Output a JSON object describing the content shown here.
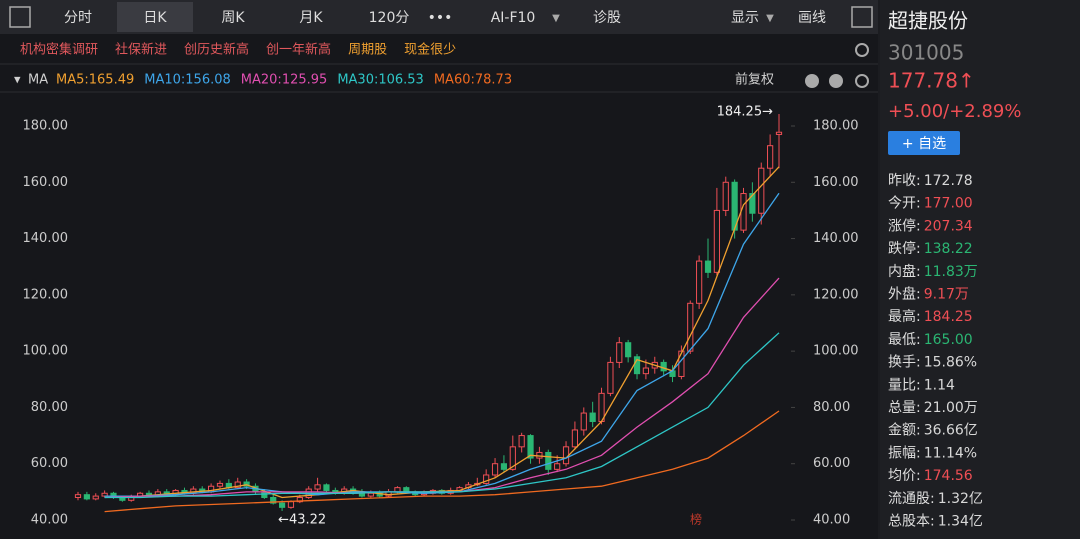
{
  "toolbar": {
    "tabs": [
      "分时",
      "日K",
      "周K",
      "月K",
      "120分",
      "AI-F10",
      "诊股",
      "显示",
      "画线"
    ],
    "active": 1
  },
  "tags": [
    {
      "text": "机构密集调研",
      "color": "#e0585c"
    },
    {
      "text": "社保新进",
      "color": "#e0585c"
    },
    {
      "text": "创历史新高",
      "color": "#e0585c"
    },
    {
      "text": "创一年新高",
      "color": "#e0585c"
    },
    {
      "text": "周期股",
      "color": "#f0a030"
    },
    {
      "text": "现金很少",
      "color": "#f0a030"
    }
  ],
  "indicator": "MA",
  "adjust": "前复权",
  "watermark": "榜",
  "chart_data": {
    "type": "candlestick",
    "open": [
      48,
      49,
      47.5,
      48.5,
      49.5,
      48,
      47,
      48.5,
      49.5,
      48.5,
      50,
      49,
      50.5,
      49.5,
      51,
      50,
      52,
      53,
      51.5,
      53.5,
      52,
      50,
      48,
      46,
      44.5,
      46.5,
      48,
      51,
      52.5,
      50.5,
      49.5,
      51,
      50,
      48.5,
      49.5,
      48.5,
      50,
      51.5,
      50,
      49,
      49.5,
      50.5,
      49.5,
      50.5,
      51.5,
      52.5,
      53,
      56,
      60,
      58,
      66,
      70,
      62,
      64,
      58,
      60,
      66,
      72,
      78,
      75,
      85,
      96,
      103,
      98,
      92,
      94,
      96,
      93,
      91,
      100,
      117,
      132,
      128,
      150,
      160,
      143,
      156,
      149,
      165,
      177
    ],
    "close": [
      49,
      47.5,
      48.5,
      49.5,
      48,
      47,
      48.5,
      49.5,
      48.5,
      50,
      49,
      50.5,
      49.5,
      51,
      50,
      52,
      53,
      51.5,
      53.5,
      52,
      50,
      48,
      46,
      44.5,
      46.5,
      48,
      51,
      52.5,
      50.5,
      49.5,
      51,
      50,
      48.5,
      49.5,
      48.5,
      50,
      51.5,
      50,
      49,
      49.5,
      50.5,
      49.5,
      50.5,
      51.5,
      52.5,
      53,
      56,
      60,
      58,
      66,
      70,
      62,
      64,
      58,
      60,
      66,
      72,
      78,
      75,
      85,
      96,
      103,
      98,
      92,
      94,
      96,
      93,
      91,
      100,
      117,
      132,
      128,
      150,
      160,
      143,
      156,
      149,
      165,
      173,
      177.78
    ],
    "low": [
      47,
      47,
      47,
      48,
      47.5,
      46.5,
      46.5,
      48,
      48,
      48,
      48.5,
      48.5,
      49,
      49,
      49.5,
      49.5,
      51,
      51,
      51,
      51,
      49,
      47.5,
      45.5,
      43.22,
      44,
      46,
      47.5,
      50,
      50,
      49,
      49,
      49,
      48,
      48,
      48,
      48,
      49.5,
      49.5,
      48.5,
      48.5,
      49,
      49,
      49,
      50,
      51,
      52,
      52.5,
      55,
      57,
      57.5,
      64,
      60,
      60,
      56,
      57,
      59,
      65,
      70,
      73,
      74,
      84,
      94,
      96,
      90,
      90,
      92,
      91,
      89,
      90,
      99,
      115,
      126,
      127,
      148,
      140,
      142,
      146,
      145,
      162,
      165
    ],
    "high": [
      50,
      50,
      49.5,
      50.5,
      50,
      48.5,
      49,
      50,
      50.5,
      51,
      51,
      51,
      51.5,
      52,
      52,
      53,
      54,
      54.5,
      55,
      54.5,
      53,
      51,
      49,
      47,
      47,
      49,
      52,
      55,
      53,
      51.5,
      52,
      52,
      51,
      50.5,
      50.5,
      51,
      52,
      52,
      50.5,
      50.5,
      51,
      51,
      51.5,
      52,
      53.5,
      55,
      58,
      62,
      63,
      70,
      71,
      70.5,
      66,
      65,
      63,
      68,
      75,
      80,
      82,
      87,
      98,
      105,
      104,
      99,
      97,
      98,
      97,
      95,
      102,
      118,
      134,
      140,
      158,
      162,
      161,
      158,
      160,
      167,
      177,
      184.25
    ],
    "up_color": "#ef4f55",
    "down_color": "#2bb673",
    "series": [
      {
        "name": "MA5:165.49",
        "color": "#f0a030",
        "x": [
          3,
          7,
          11,
          15,
          19,
          23,
          27,
          31,
          35,
          39,
          43,
          47,
          51,
          55,
          59,
          63,
          67,
          71,
          75,
          79
        ],
        "values": [
          48.5,
          48.5,
          49.5,
          50.5,
          52.5,
          48,
          49,
          50.5,
          49,
          50,
          50.5,
          55,
          63,
          62,
          75,
          97,
          93,
          118,
          152,
          165.49
        ]
      },
      {
        "name": "MA10:156.08",
        "color": "#3ea6ea",
        "x": [
          3,
          7,
          11,
          15,
          19,
          23,
          27,
          31,
          35,
          39,
          43,
          47,
          51,
          55,
          59,
          63,
          67,
          71,
          75,
          79
        ],
        "values": [
          48.5,
          48.5,
          49,
          50,
          51.5,
          50,
          49,
          50,
          50,
          49.5,
          50,
          53,
          58,
          62,
          68,
          86,
          93,
          108,
          138,
          156.08
        ]
      },
      {
        "name": "MA20:125.95",
        "color": "#e04fb0",
        "x": [
          3,
          7,
          11,
          15,
          19,
          23,
          27,
          31,
          35,
          39,
          43,
          47,
          51,
          55,
          59,
          63,
          67,
          71,
          75,
          79
        ],
        "values": [
          48,
          48.5,
          48.5,
          49,
          50,
          50,
          50,
          49.5,
          50,
          50,
          50,
          51.5,
          55,
          58,
          63,
          73,
          82,
          92,
          112,
          125.95
        ]
      },
      {
        "name": "MA30:106.53",
        "color": "#2ec6c6",
        "x": [
          3,
          7,
          11,
          15,
          19,
          23,
          27,
          31,
          35,
          39,
          43,
          47,
          51,
          55,
          59,
          63,
          67,
          71,
          75,
          79
        ],
        "values": [
          48,
          48,
          48.5,
          48.5,
          49,
          49.5,
          49.5,
          49.5,
          50,
          50,
          50,
          51,
          53,
          55,
          59,
          66,
          73,
          80,
          95,
          106.53
        ]
      },
      {
        "name": "MA60:78.73",
        "color": "#f06a20",
        "x": [
          3,
          7,
          11,
          15,
          19,
          23,
          27,
          31,
          35,
          39,
          43,
          47,
          51,
          55,
          59,
          63,
          67,
          71,
          75,
          79
        ],
        "values": [
          43,
          44,
          45,
          45.5,
          46,
          46.5,
          47,
          47.5,
          48,
          48.5,
          48.5,
          49,
          50,
          51,
          52,
          55,
          58,
          62,
          70,
          78.73
        ]
      }
    ],
    "annotations": [
      "184.25→",
      "←43.22"
    ],
    "ylim": [
      33.25,
      192.08
    ],
    "yticks": [
      {
        "value": 40,
        "label": "40.00"
      },
      {
        "value": 60,
        "label": "60.00"
      },
      {
        "value": 80,
        "label": "80.00"
      },
      {
        "value": 100,
        "label": "100.00"
      },
      {
        "value": 120,
        "label": "120.00"
      },
      {
        "value": 140,
        "label": "140.00"
      },
      {
        "value": 160,
        "label": "160.00"
      },
      {
        "value": 180,
        "label": "180.00"
      }
    ]
  },
  "quote": {
    "name": "超捷股份",
    "code": "301005",
    "price": "177.78↑",
    "change": "+5.00/+2.89%",
    "button": "+ 自选",
    "stats": [
      {
        "label": "昨收:",
        "value": "172.78",
        "color": "#d8d8d8"
      },
      {
        "label": "今开:",
        "value": "177.00",
        "color": "#ef4f55"
      },
      {
        "label": "涨停:",
        "value": "207.34",
        "color": "#ef4f55"
      },
      {
        "label": "跌停:",
        "value": "138.22",
        "color": "#2bb673"
      },
      {
        "label": "内盘:",
        "value": "11.83万",
        "color": "#2bb673"
      },
      {
        "label": "外盘:",
        "value": "9.17万",
        "color": "#ef4f55"
      },
      {
        "label": "最高:",
        "value": "184.25",
        "color": "#ef4f55"
      },
      {
        "label": "最低:",
        "value": "165.00",
        "color": "#2bb673"
      },
      {
        "label": "换手:",
        "value": "15.86%",
        "color": "#d8d8d8"
      },
      {
        "label": "量比:",
        "value": "1.14",
        "color": "#d8d8d8"
      },
      {
        "label": "总量:",
        "value": "21.00万",
        "color": "#d8d8d8"
      },
      {
        "label": "金额:",
        "value": "36.66亿",
        "color": "#d8d8d8"
      },
      {
        "label": "振幅:",
        "value": "11.14%",
        "color": "#d8d8d8"
      },
      {
        "label": "均价:",
        "value": "174.56",
        "color": "#ef4f55"
      },
      {
        "label": "流通股:",
        "value": "1.32亿",
        "color": "#d8d8d8"
      },
      {
        "label": "总股本:",
        "value": "1.34亿",
        "color": "#d8d8d8"
      }
    ]
  }
}
